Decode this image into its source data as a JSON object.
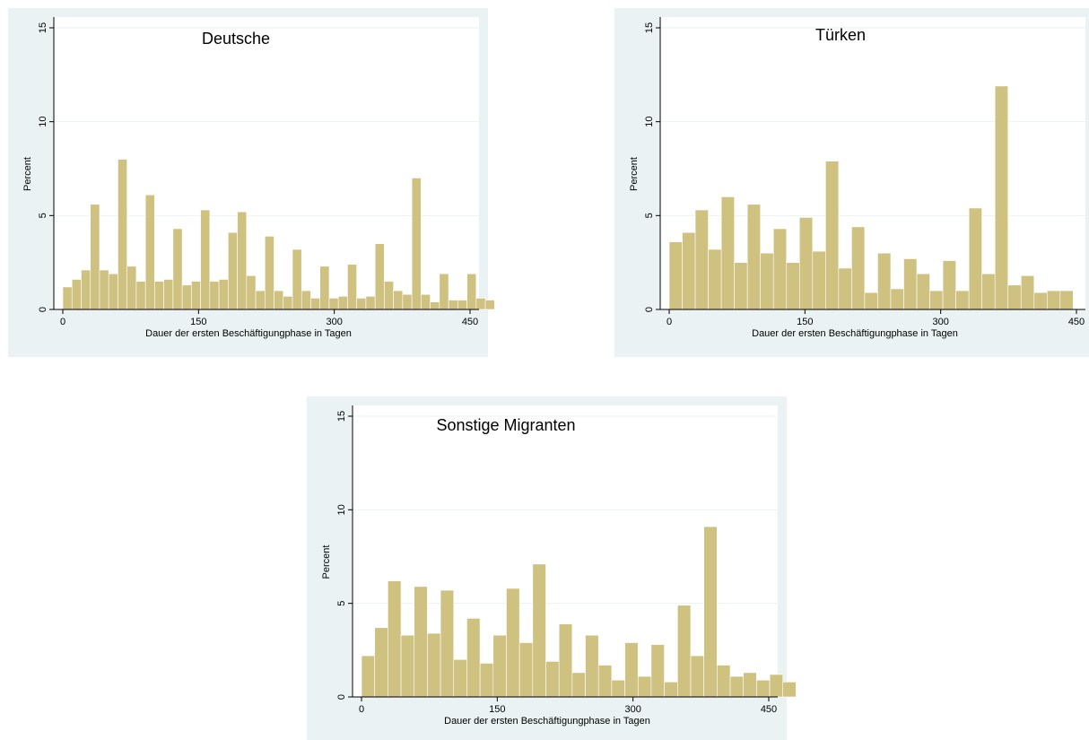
{
  "colors": {
    "bar": "#cfc180",
    "panel_background": "#eaf2f3",
    "plot_background": "#ffffff",
    "axis": "#000000"
  },
  "chart_data": [
    {
      "type": "bar",
      "title": "Deutsche",
      "xlabel": "Dauer der ersten Beschäftigungphase in Tagen",
      "ylabel": "Percent",
      "xlim": [
        0,
        450
      ],
      "ylim": [
        0,
        15
      ],
      "xticks": [
        0,
        150,
        300,
        450
      ],
      "yticks": [
        0,
        5,
        10,
        15
      ],
      "grid": true,
      "bin_width": 10.15,
      "bin_start": 0,
      "values": [
        1.2,
        1.6,
        2.1,
        5.6,
        2.1,
        1.9,
        8.0,
        2.3,
        1.5,
        6.1,
        1.5,
        1.6,
        4.3,
        1.3,
        1.5,
        5.3,
        1.5,
        1.6,
        4.1,
        5.2,
        1.8,
        1.0,
        3.9,
        1.0,
        0.7,
        3.2,
        1.0,
        0.6,
        2.3,
        0.6,
        0.7,
        2.4,
        0.6,
        0.7,
        3.5,
        1.5,
        1.0,
        0.8,
        7.0,
        0.8,
        0.4,
        1.9,
        0.5,
        0.5,
        1.9,
        0.6,
        0.5
      ]
    },
    {
      "type": "bar",
      "title": "Türken",
      "xlabel": "Dauer der ersten Beschäftigungphase in Tagen",
      "ylabel": "Percent",
      "xlim": [
        0,
        450
      ],
      "ylim": [
        0,
        15
      ],
      "xticks": [
        0,
        150,
        300,
        450
      ],
      "yticks": [
        0,
        5,
        10,
        15
      ],
      "grid": true,
      "bin_width": 14.4,
      "bin_start": 0,
      "values": [
        3.6,
        4.1,
        5.3,
        3.2,
        6.0,
        2.5,
        5.6,
        3.0,
        4.3,
        2.5,
        4.9,
        3.1,
        7.9,
        2.2,
        4.4,
        0.9,
        3.0,
        1.1,
        2.7,
        1.9,
        1.0,
        2.6,
        1.0,
        5.4,
        1.9,
        11.9,
        1.3,
        1.8,
        0.9,
        1.0,
        1.0
      ]
    },
    {
      "type": "bar",
      "title": "Sonstige Migranten",
      "xlabel": "Dauer der ersten Beschäftigungphase in Tagen",
      "ylabel": "Percent",
      "xlim": [
        0,
        450
      ],
      "ylim": [
        0,
        15
      ],
      "xticks": [
        0,
        150,
        300,
        450
      ],
      "yticks": [
        0,
        5,
        10,
        15
      ],
      "grid": true,
      "bin_width": 14.55,
      "bin_start": 0,
      "values": [
        2.2,
        3.7,
        6.2,
        3.3,
        5.9,
        3.4,
        5.7,
        2.0,
        4.2,
        1.8,
        3.3,
        5.8,
        2.9,
        7.1,
        1.9,
        3.9,
        1.3,
        3.3,
        1.7,
        0.9,
        2.9,
        1.1,
        2.8,
        0.8,
        4.9,
        2.2,
        9.1,
        1.7,
        1.1,
        1.3,
        0.9,
        1.2,
        0.8
      ]
    }
  ]
}
